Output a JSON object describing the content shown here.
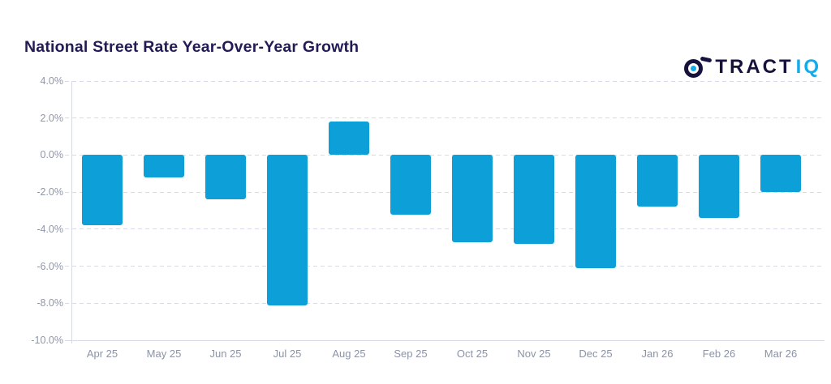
{
  "logo": {
    "brand_primary": "TRACT",
    "brand_secondary": "IQ",
    "icon": "tractiq-lens-icon",
    "navy": "#15123d",
    "cyan": "#12ade9"
  },
  "chart_data": {
    "type": "bar",
    "title": "National Street Rate Year-Over-Year Growth",
    "categories": [
      "Apr 25",
      "May 25",
      "Jun 25",
      "Jul 25",
      "Aug 25",
      "Sep 25",
      "Oct 25",
      "Nov 25",
      "Dec 25",
      "Jan 26",
      "Feb 26",
      "Mar 26"
    ],
    "values": [
      -3.8,
      -1.2,
      -2.4,
      -8.1,
      1.8,
      -3.2,
      -4.7,
      -4.8,
      -6.1,
      -2.8,
      -3.4,
      -2.0
    ],
    "unit": "%",
    "xlabel": "",
    "ylabel": "",
    "ylim": [
      -10,
      4
    ],
    "ytick_step": 2,
    "ytick_labels": [
      "4.0%",
      "2.0%",
      "0.0%",
      "-2.0%",
      "-4.0%",
      "-6.0%",
      "-8.0%",
      "-10.0%"
    ],
    "grid": "dashed-horizontal",
    "legend": "none",
    "bar_color": "#0d9fd8",
    "gridline_color": "#d7dbe7",
    "axis_line_color": "#d6dae3",
    "tick_label_color": "#8c93a6",
    "title_color": "#221c54"
  }
}
